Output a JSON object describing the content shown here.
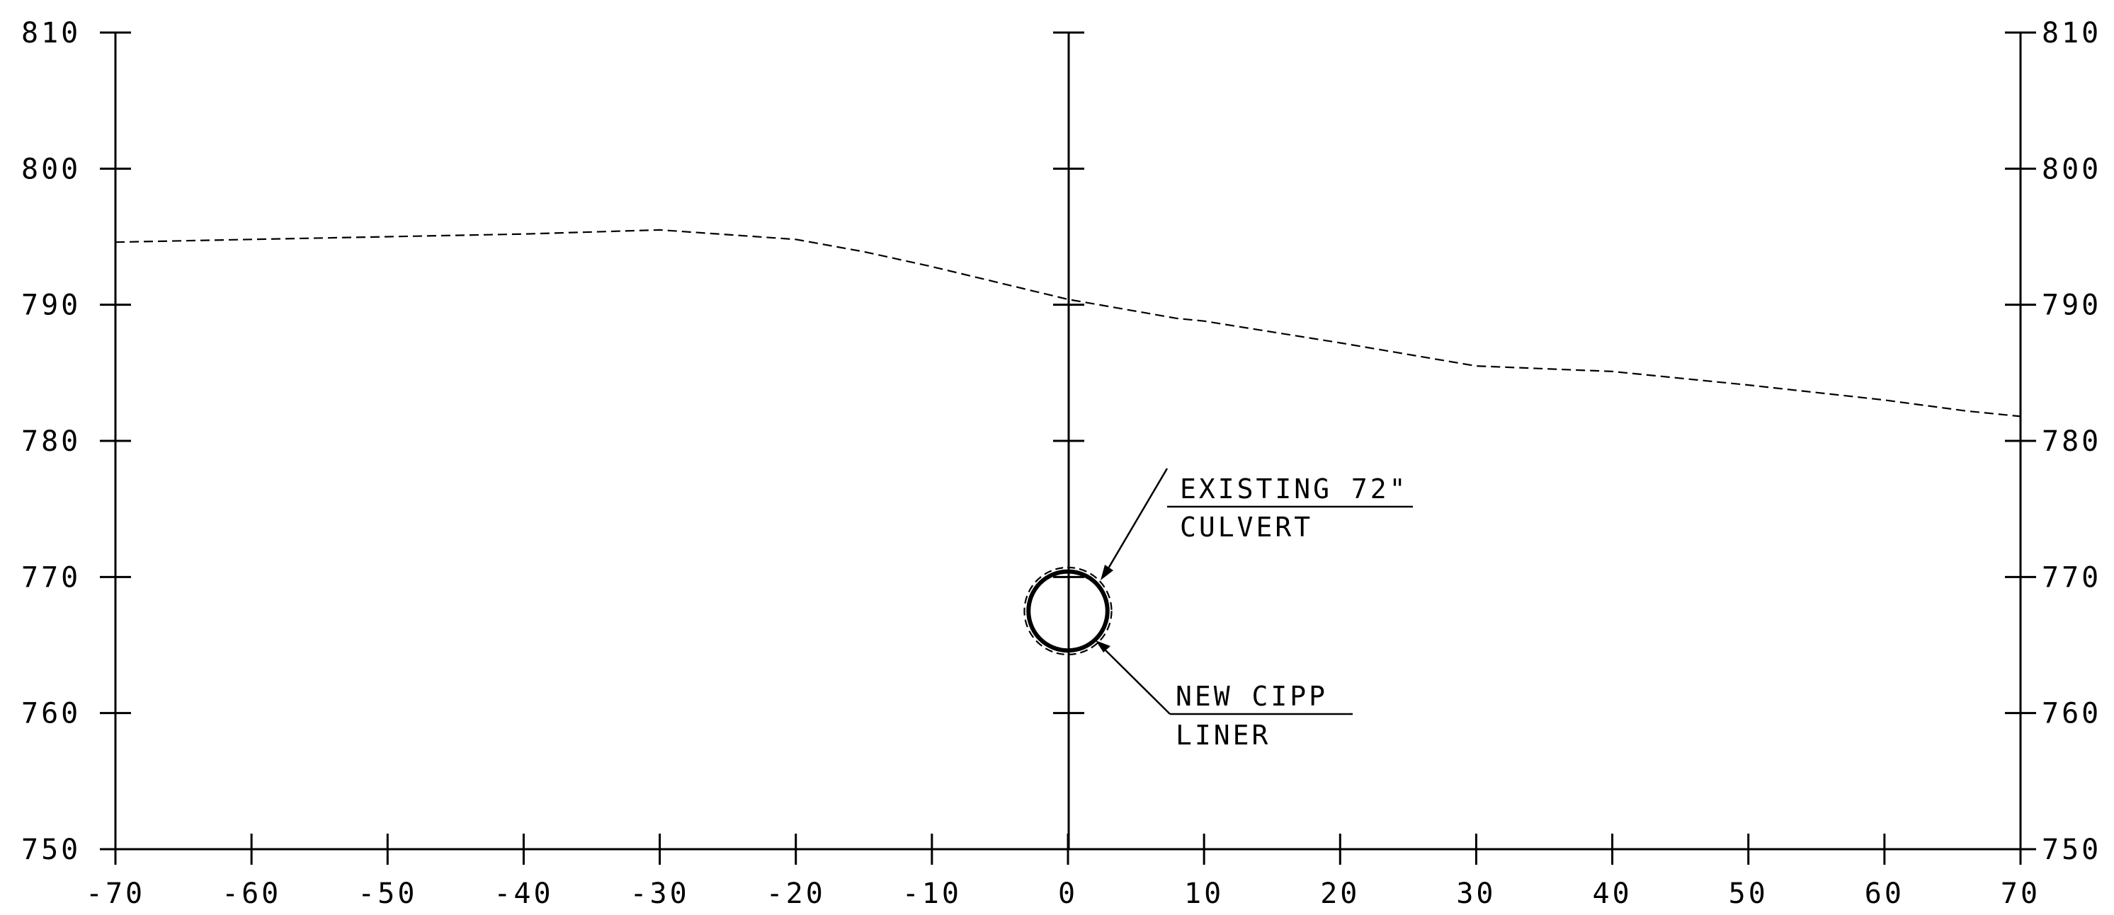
{
  "drawing": {
    "x_axis": {
      "range": [
        -70,
        70
      ],
      "tick_step": 10,
      "tick_labels": [
        "-70",
        "-60",
        "-50",
        "-40",
        "-30",
        "-20",
        "-10",
        "0",
        "10",
        "20",
        "30",
        "40",
        "50",
        "60",
        "70"
      ]
    },
    "y_axis": {
      "range": [
        750,
        810
      ],
      "tick_step": 10,
      "tick_labels": [
        "810",
        "800",
        "790",
        "780",
        "770",
        "760",
        "750"
      ]
    },
    "ground_profile": {
      "style": "dashed",
      "points": [
        [
          -70,
          794.6
        ],
        [
          -60,
          794.8
        ],
        [
          -50,
          795.0
        ],
        [
          -40,
          795.2
        ],
        [
          -30,
          795.5
        ],
        [
          -20,
          794.8
        ],
        [
          -15,
          793.9
        ],
        [
          -10,
          792.8
        ],
        [
          0,
          790.4
        ],
        [
          8,
          789.0
        ],
        [
          10,
          788.8
        ],
        [
          20,
          787.2
        ],
        [
          30,
          785.5
        ],
        [
          40,
          785.1
        ],
        [
          50,
          784.1
        ],
        [
          60,
          783.0
        ],
        [
          66,
          782.2
        ],
        [
          70,
          781.8
        ]
      ]
    },
    "culvert": {
      "center_x": 0,
      "center_elev": 767.5,
      "outer_radius_ft": 3.2,
      "liner_radius_ft": 2.9
    },
    "annotations": [
      {
        "id": "existing-culvert",
        "lines": [
          "EXISTING 72\"",
          "CULVERT"
        ]
      },
      {
        "id": "new-liner",
        "lines": [
          "NEW CIPP",
          "LINER"
        ]
      }
    ],
    "colors": {
      "ink": "#000000",
      "background": "#ffffff"
    }
  }
}
